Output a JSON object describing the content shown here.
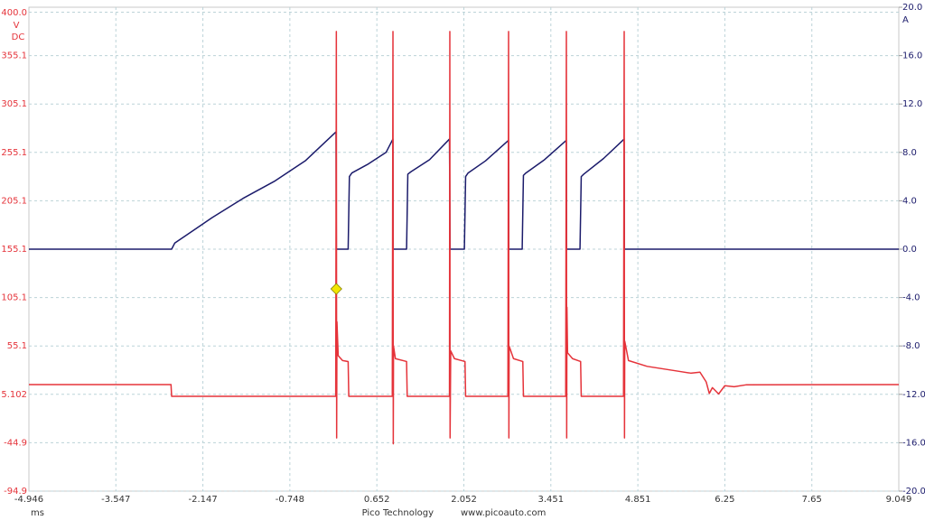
{
  "chart_data": {
    "type": "line",
    "y_unit": "V",
    "y_coupling": "DC",
    "y2_unit": "A",
    "x_unit": "ms",
    "footer": [
      "Pico Technology",
      "www.picoauto.com"
    ],
    "xlim": [
      -4.946,
      9.049
    ],
    "xticks": [
      -4.946,
      -3.547,
      -2.147,
      -0.748,
      0.652,
      2.052,
      3.451,
      4.851,
      6.25,
      7.65,
      9.049
    ],
    "ylim": [
      -94.9,
      405.1
    ],
    "yticks": [
      {
        "value": 400,
        "label": "400.0"
      },
      355.1,
      305.1,
      255.1,
      205.1,
      155.1,
      105.1,
      55.1,
      5.102,
      -44.9,
      -94.9
    ],
    "y2lim": [
      -20,
      20
    ],
    "y2ticks": [
      {
        "value": 20,
        "label": "20.0"
      },
      {
        "value": 16,
        "label": "16.0"
      },
      {
        "value": 12,
        "label": "12.0"
      },
      {
        "value": 8,
        "label": "8.0"
      },
      {
        "value": 4,
        "label": "4.0"
      },
      {
        "value": 0,
        "label": "0.0"
      },
      {
        "value": -4,
        "label": "-4.0"
      },
      {
        "value": -8,
        "label": "-8.0"
      },
      {
        "value": -12,
        "label": "-12.0"
      },
      {
        "value": -16,
        "label": "-16.0"
      },
      {
        "value": -20,
        "label": "-20.0"
      }
    ],
    "grid": true,
    "series": [
      {
        "color": "#1b1b6b",
        "axis": "y2",
        "x": [
          -4.946,
          -2.65,
          -2.6,
          -2.0,
          -1.5,
          -1.0,
          -0.5,
          -0.005,
          0.0,
          0.19,
          0.21,
          0.25,
          0.5,
          0.8,
          0.91,
          0.915,
          1.13,
          1.15,
          1.2,
          1.5,
          1.82,
          1.83,
          2.06,
          2.08,
          2.12,
          2.4,
          2.77,
          2.775,
          2.99,
          3.01,
          3.05,
          3.35,
          3.7,
          3.705,
          3.92,
          3.94,
          3.98,
          4.3,
          4.63,
          4.635,
          9.049
        ],
        "values": [
          0,
          0,
          0.5,
          2.6,
          4.2,
          5.6,
          7.3,
          9.7,
          0,
          0,
          6.0,
          6.3,
          7.0,
          8.0,
          9.1,
          0,
          0,
          6.2,
          6.4,
          7.4,
          9.1,
          0,
          0,
          6.0,
          6.3,
          7.3,
          9.0,
          0,
          0,
          6.1,
          6.3,
          7.4,
          9.0,
          0,
          0,
          6.0,
          6.2,
          7.5,
          9.1,
          0,
          0
        ]
      },
      {
        "color": "#e5333a",
        "axis": "y",
        "x": [
          -4.946,
          -2.66,
          -2.65,
          -0.01,
          0.0,
          0.005,
          0.01,
          0.03,
          0.1,
          0.19,
          0.2,
          0.9,
          0.911,
          0.916,
          0.92,
          0.95,
          1.13,
          1.14,
          1.82,
          1.826,
          1.83,
          1.84,
          1.9,
          2.07,
          2.08,
          2.76,
          2.771,
          2.776,
          2.78,
          2.85,
          3.0,
          3.01,
          3.69,
          3.701,
          3.706,
          3.71,
          3.72,
          3.8,
          3.93,
          3.94,
          4.62,
          4.631,
          4.636,
          4.64,
          4.7,
          5.0,
          5.5,
          5.7,
          5.85,
          5.95,
          6.0,
          6.05,
          6.15,
          6.25,
          6.4,
          6.6,
          9.049
        ],
        "values": [
          15.2,
          15.2,
          3.1,
          3.1,
          380,
          -40,
          80,
          45,
          40,
          39,
          3.1,
          3.1,
          380,
          -46,
          55,
          42,
          39,
          3.1,
          3.1,
          380,
          -40,
          50,
          42,
          39,
          3.1,
          3.1,
          380,
          -40,
          55,
          42,
          39,
          3.1,
          3.1,
          380,
          -40,
          95,
          48,
          42,
          39,
          3.1,
          3.1,
          380,
          -40,
          60,
          40,
          34,
          29,
          27,
          28,
          18,
          6,
          12,
          5.5,
          14,
          13,
          15,
          15.2
        ]
      }
    ],
    "trigger": {
      "x": 0,
      "y": 114,
      "color": "#f2e600"
    }
  }
}
